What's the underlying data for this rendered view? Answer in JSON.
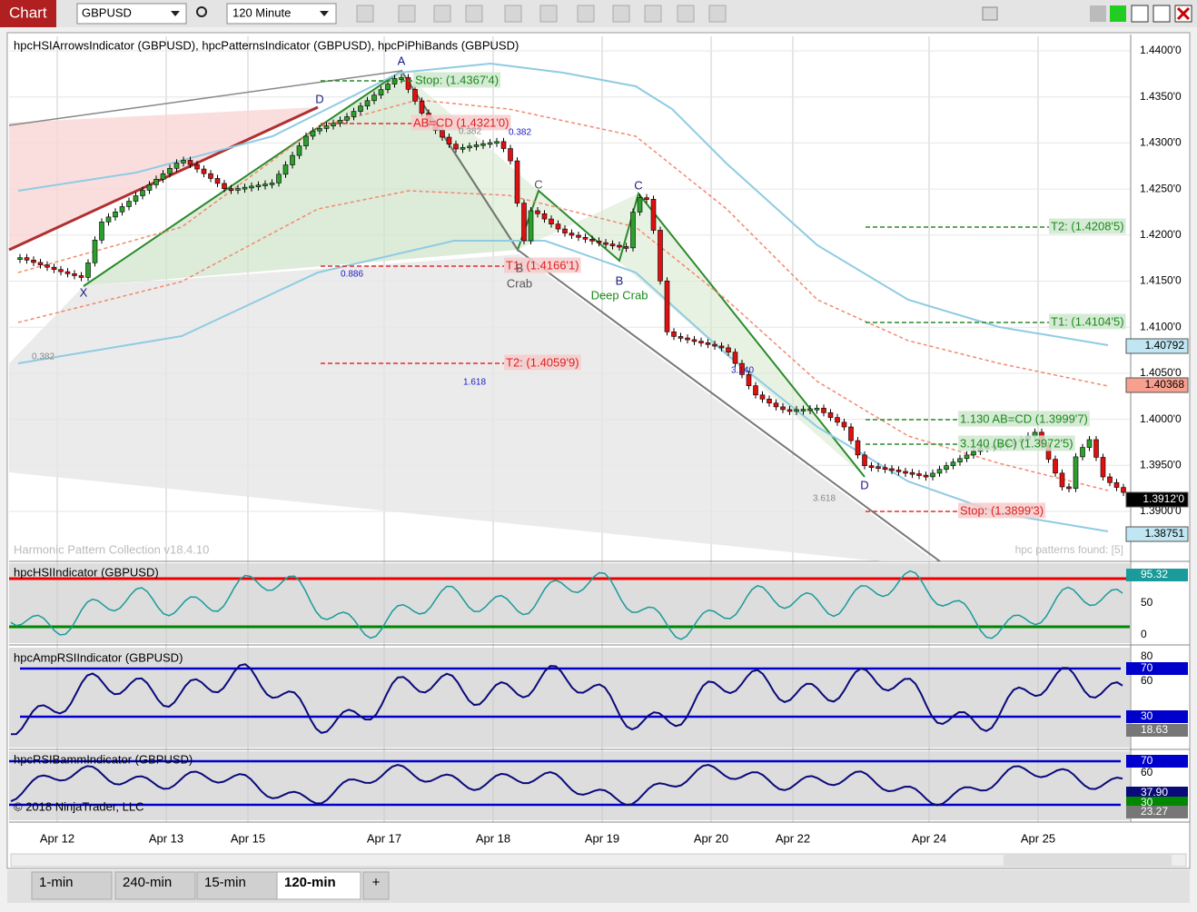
{
  "toolbar": {
    "title": "Chart",
    "instrument": "GBPUSD",
    "interval": "120 Minute"
  },
  "main": {
    "indicators": "hpcHSIArrowsIndicator (GBPUSD), hpcPatternsIndicator (GBPUSD), hpcPiPhiBands (GBPUSD)",
    "watermark": "Harmonic Pattern Collection v18.4.10",
    "patterns_found": "hpc patterns found: [5]",
    "price_ticks": [
      "1.4400'0",
      "1.4350'0",
      "1.4300'0",
      "1.4250'0",
      "1.4200'0",
      "1.4150'0",
      "1.4100'0",
      "1.4050'0",
      "1.4000'0",
      "1.3950'0",
      "1.3900'0"
    ],
    "price_markers": [
      "1.40792",
      "1.40368",
      "1.3912'0",
      "1.38751"
    ],
    "annotations": [
      "Stop: (1.4367'4)",
      "AB=CD (1.4321'0)",
      "T1: (1.4166'1)",
      "T2: (1.4059'9)",
      "T2: (1.4208'5)",
      "T1: (1.4104'5)",
      "1.130 AB=CD (1.3999'7)",
      "3.140 (BC) (1.3972'5)",
      "Stop: (1.3899'3)"
    ],
    "ratios": [
      "0.382",
      "0.382",
      "0.886",
      "1.618",
      "0.382",
      "3.618",
      "3.140"
    ],
    "points": [
      "D",
      "A",
      "X",
      "B",
      "C",
      "Crab",
      "C",
      "B",
      "Deep Crab",
      "D"
    ]
  },
  "hsi": {
    "label": "hpcHSIIndicator (GBPUSD)",
    "ticks": [
      "50",
      "0"
    ],
    "marker": "95.32"
  },
  "amp_rsi": {
    "label": "hpcAmpRSIIndicator (GBPUSD)",
    "ticks": [
      "80",
      "60"
    ],
    "markers": [
      "70",
      "30",
      "18.63"
    ]
  },
  "rsi_bamm": {
    "label": "hpcRSIBammIndicator (GBPUSD)",
    "ticks": [
      "60"
    ],
    "markers": [
      "70",
      "37.90",
      "30",
      "23.27"
    ]
  },
  "copyright": "© 2018 NinjaTrader, LLC",
  "dates": [
    "Apr 12",
    "Apr 13",
    "Apr 15",
    "Apr 17",
    "Apr 18",
    "Apr 19",
    "Apr 20",
    "Apr 22",
    "Apr 24",
    "Apr 25"
  ],
  "tabs": [
    "1-min",
    "240-min",
    "15-min",
    "120-min",
    "+"
  ]
}
